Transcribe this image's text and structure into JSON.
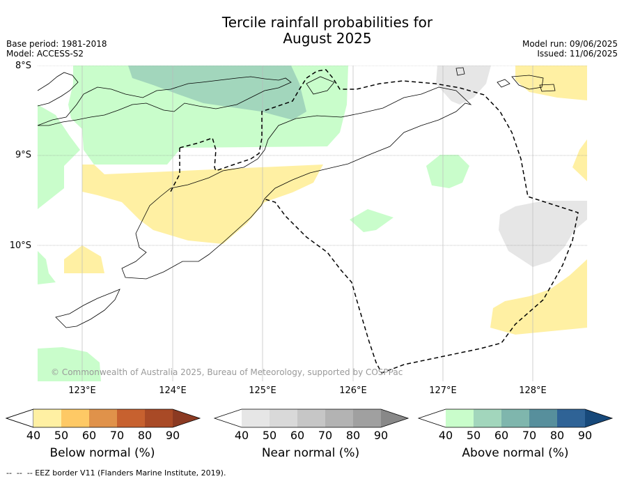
{
  "title_line1": "Tercile rainfall probabilities for",
  "title_line2": "August 2025",
  "meta_left": {
    "base_period": "Base period: 1981-2018",
    "model": "Model: ACCESS-S2"
  },
  "meta_right": {
    "model_run": "Model run: 09/06/2025",
    "issued": "Issued: 11/06/2025"
  },
  "lat_labels": [
    "8°S",
    "9°S",
    "10°S"
  ],
  "lon_labels": [
    "123°E",
    "124°E",
    "125°E",
    "126°E",
    "127°E",
    "128°E"
  ],
  "copyright": "© Commonwealth of Australia 2025, Bureau of Meteorology, supported by COSPPac",
  "colorbars": [
    {
      "title": "Below normal (%)",
      "ticks": [
        "40",
        "50",
        "60",
        "70",
        "80",
        "90"
      ],
      "colors": [
        "#ffffff",
        "#fff0a3",
        "#fec965",
        "#e0924a",
        "#c7612f",
        "#a94a26",
        "#8b3a22"
      ]
    },
    {
      "title": "Near normal (%)",
      "ticks": [
        "40",
        "50",
        "60",
        "70",
        "80",
        "90"
      ],
      "colors": [
        "#ffffff",
        "#e6e6e6",
        "#d9d9d9",
        "#c6c6c6",
        "#b3b3b3",
        "#a0a0a0",
        "#888888"
      ]
    },
    {
      "title": "Above normal (%)",
      "ticks": [
        "40",
        "50",
        "60",
        "70",
        "80",
        "90"
      ],
      "colors": [
        "#ffffff",
        "#c9fdcb",
        "#a2d6bc",
        "#7fb6ad",
        "#578f9c",
        "#2f6396",
        "#17497a"
      ]
    }
  ],
  "footer": "--  --  -- EEZ border V11 (Flanders Marine Institute, 2019).",
  "colors": {
    "below_50": "#fff0a3",
    "near_40": "#e6e6e6",
    "above_40": "#c9fdcb",
    "above_50": "#a2d6bc"
  }
}
